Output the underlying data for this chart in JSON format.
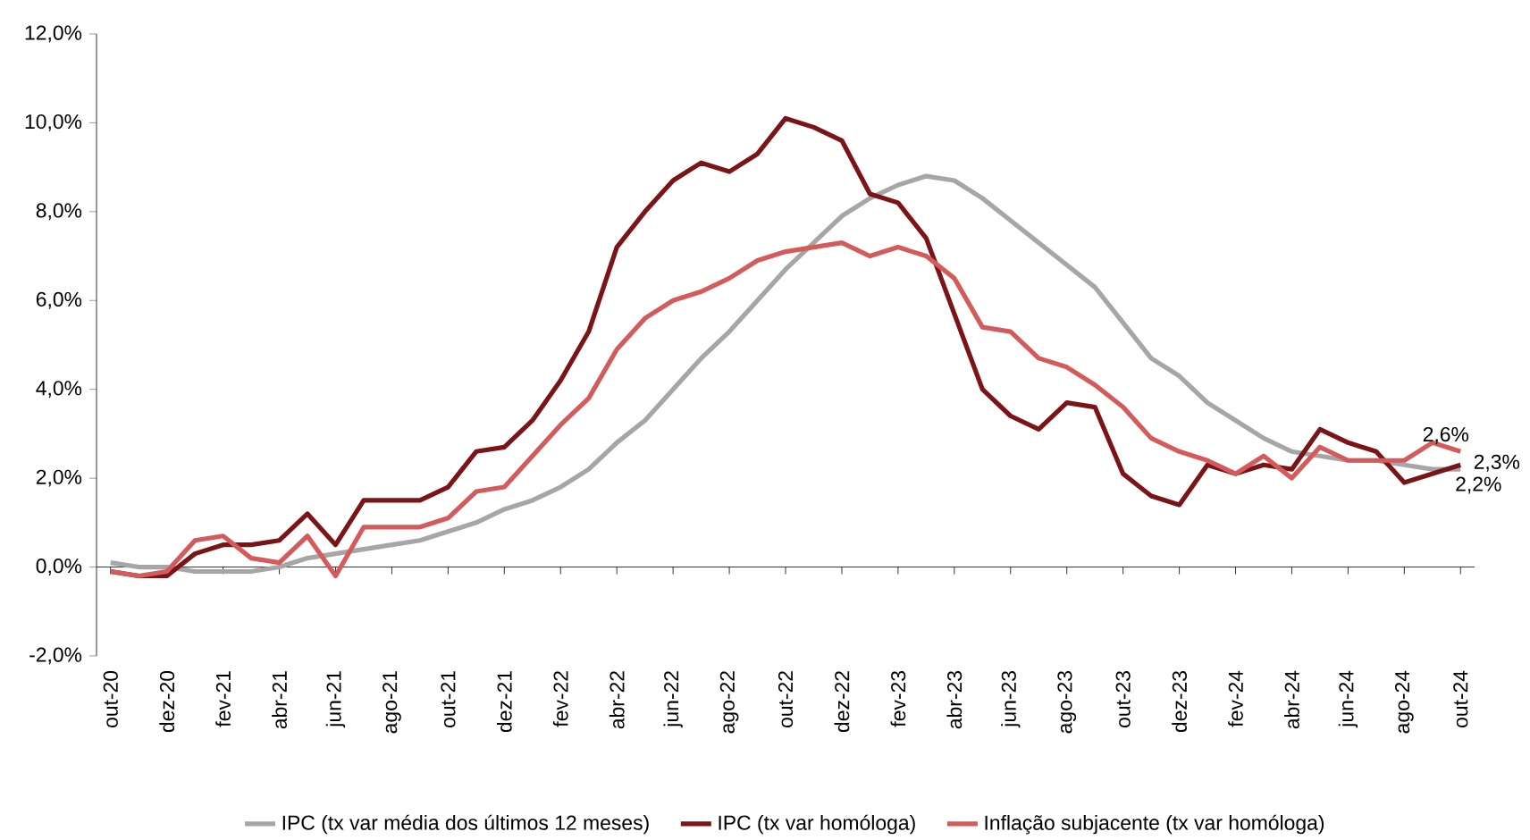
{
  "chart_data": {
    "type": "line",
    "categories": [
      "out-20",
      null,
      "dez-20",
      null,
      "fev-21",
      null,
      "abr-21",
      null,
      "jun-21",
      null,
      "ago-21",
      null,
      "out-21",
      null,
      "dez-21",
      null,
      "fev-22",
      null,
      "abr-22",
      null,
      "jun-22",
      null,
      "ago-22",
      null,
      "out-22",
      null,
      "dez-22",
      null,
      "fev-23",
      null,
      "abr-23",
      null,
      "jun-23",
      null,
      "ago-23",
      null,
      "out-23",
      null,
      "dez-23",
      null,
      "fev-24",
      null,
      "abr-24",
      null,
      "jun-24",
      null,
      "ago-24",
      null,
      "out-24"
    ],
    "series": [
      {
        "name": "IPC (tx var média dos últimos 12 meses)",
        "color": "#a6a6a6",
        "values": [
          0.1,
          0.0,
          0.0,
          -0.1,
          -0.1,
          -0.1,
          0.0,
          0.2,
          0.3,
          0.4,
          0.5,
          0.6,
          0.8,
          1.0,
          1.3,
          1.5,
          1.8,
          2.2,
          2.8,
          3.3,
          4.0,
          4.7,
          5.3,
          6.0,
          6.7,
          7.3,
          7.9,
          8.3,
          8.6,
          8.8,
          8.7,
          8.3,
          7.8,
          7.3,
          6.8,
          6.3,
          5.5,
          4.7,
          4.3,
          3.7,
          3.3,
          2.9,
          2.6,
          2.5,
          2.4,
          2.4,
          2.3,
          2.2,
          2.2
        ]
      },
      {
        "name": "IPC (tx var homóloga)",
        "color": "#7b1416",
        "values": [
          -0.1,
          -0.2,
          -0.2,
          0.3,
          0.5,
          0.5,
          0.6,
          1.2,
          0.5,
          1.5,
          1.5,
          1.5,
          1.8,
          2.6,
          2.7,
          3.3,
          4.2,
          5.3,
          7.2,
          8.0,
          8.7,
          9.1,
          8.9,
          9.3,
          10.1,
          9.9,
          9.6,
          8.4,
          8.2,
          7.4,
          5.7,
          4.0,
          3.4,
          3.1,
          3.7,
          3.6,
          2.1,
          1.6,
          1.4,
          2.3,
          2.1,
          2.3,
          2.2,
          3.1,
          2.8,
          2.6,
          1.9,
          2.1,
          2.3
        ]
      },
      {
        "name": "Inflação subjacente (tx var homóloga)",
        "color": "#d45b5b",
        "values": [
          -0.1,
          -0.2,
          -0.1,
          0.6,
          0.7,
          0.2,
          0.1,
          0.7,
          -0.2,
          0.9,
          0.9,
          0.9,
          1.1,
          1.7,
          1.8,
          2.5,
          3.2,
          3.8,
          4.9,
          5.6,
          6.0,
          6.2,
          6.5,
          6.9,
          7.1,
          7.2,
          7.3,
          7.0,
          7.2,
          7.0,
          6.5,
          5.4,
          5.3,
          4.7,
          4.5,
          4.1,
          3.6,
          2.9,
          2.6,
          2.4,
          2.1,
          2.5,
          2.0,
          2.7,
          2.4,
          2.4,
          2.4,
          2.8,
          2.6
        ]
      }
    ],
    "ylim": [
      -2,
      12
    ],
    "yticks": [
      {
        "value": -2,
        "label": "-2,0%"
      },
      {
        "value": 0,
        "label": "0,0%"
      },
      {
        "value": 2,
        "label": "2,0%"
      },
      {
        "value": 4,
        "label": "4,0%"
      },
      {
        "value": 6,
        "label": "6,0%"
      },
      {
        "value": 8,
        "label": "8,0%"
      },
      {
        "value": 10,
        "label": "10,0%"
      },
      {
        "value": 12,
        "label": "12,0%"
      }
    ],
    "annotations": [
      {
        "text": "2,6%",
        "x": "out-24",
        "y": 2.6
      },
      {
        "text": "2,3%",
        "x": "out-24",
        "y": 2.3
      },
      {
        "text": "2,2%",
        "x": "out-24",
        "y": 2.2
      }
    ],
    "legend": "bottom",
    "marker": "none",
    "line_style": "solid"
  }
}
